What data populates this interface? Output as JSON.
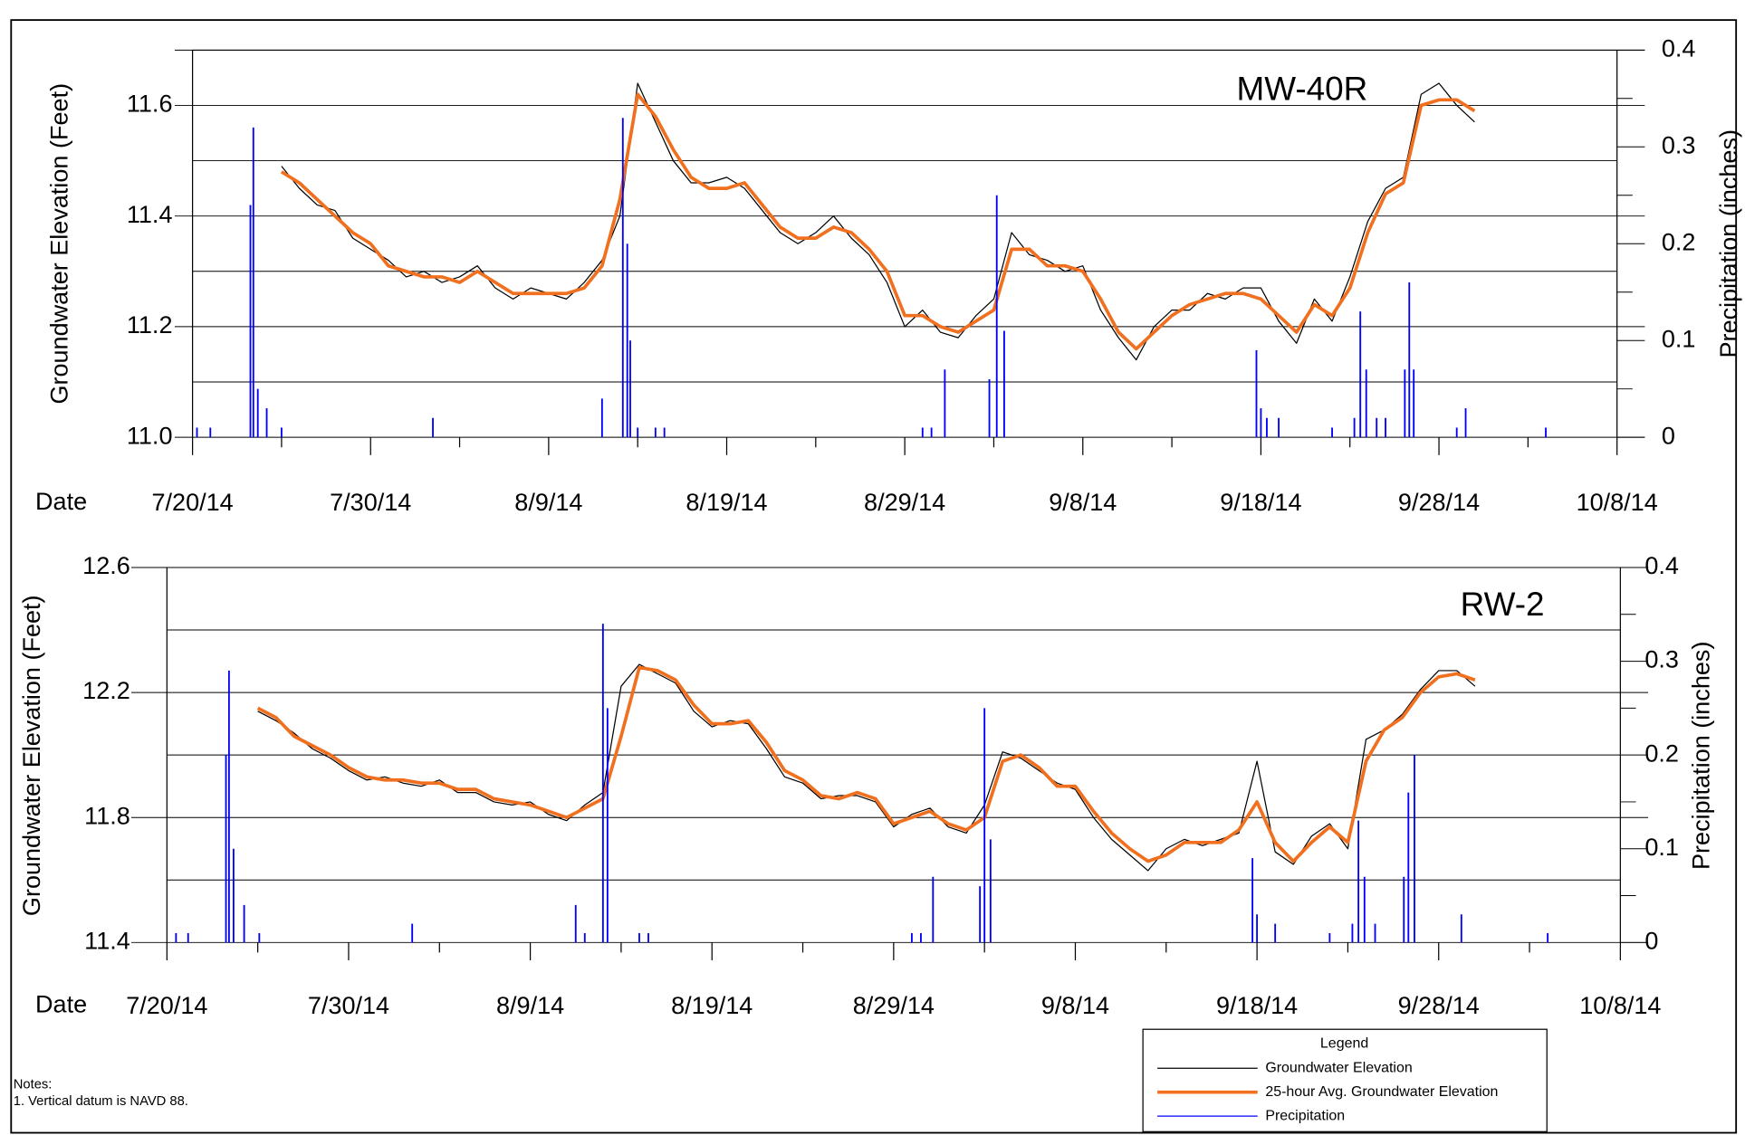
{
  "chart_data": [
    {
      "type": "line",
      "annotation": "MW-40R",
      "xlabel": "Date",
      "ylabel": "Groundwater Elevation (Feet)",
      "y2label": "Precipitation (inches)",
      "xlim": [
        "2014-07-20",
        "2014-10-08"
      ],
      "xticks": [
        {
          "value": "2014-07-20",
          "label": "7/20/14"
        },
        {
          "value": "2014-07-30",
          "label": "7/30/14"
        },
        {
          "value": "2014-08-09",
          "label": "8/9/14"
        },
        {
          "value": "2014-08-19",
          "label": "8/19/14"
        },
        {
          "value": "2014-08-29",
          "label": "8/29/14"
        },
        {
          "value": "2014-09-08",
          "label": "9/8/14"
        },
        {
          "value": "2014-09-18",
          "label": "9/18/14"
        },
        {
          "value": "2014-09-28",
          "label": "9/28/14"
        },
        {
          "value": "2014-10-08",
          "label": "10/8/14"
        }
      ],
      "xminor": [
        "2014-07-25",
        "2014-08-04",
        "2014-08-14",
        "2014-08-24",
        "2014-09-03",
        "2014-09-13",
        "2014-09-23",
        "2014-10-03"
      ],
      "ylim": [
        11.0,
        11.7
      ],
      "yticks": [
        {
          "value": 11.0,
          "label": "11.0"
        },
        11.2,
        11.4,
        11.6
      ],
      "yminor": [
        11.1,
        11.3,
        11.5,
        11.7
      ],
      "y2lim": [
        0,
        0.4
      ],
      "y2ticks": [
        0,
        0.1,
        0.2,
        0.3,
        0.4
      ],
      "y2minor": [
        0.05,
        0.15,
        0.25,
        0.35
      ],
      "x": [
        "2014-07-25",
        "2014-07-26",
        "2014-07-27",
        "2014-07-28",
        "2014-07-29",
        "2014-07-30",
        "2014-07-31",
        "2014-08-01",
        "2014-08-02",
        "2014-08-03",
        "2014-08-04",
        "2014-08-05",
        "2014-08-06",
        "2014-08-07",
        "2014-08-08",
        "2014-08-09",
        "2014-08-10",
        "2014-08-11",
        "2014-08-12",
        "2014-08-13",
        "2014-08-14",
        "2014-08-15",
        "2014-08-16",
        "2014-08-17",
        "2014-08-18",
        "2014-08-19",
        "2014-08-20",
        "2014-08-21",
        "2014-08-22",
        "2014-08-23",
        "2014-08-24",
        "2014-08-25",
        "2014-08-26",
        "2014-08-27",
        "2014-08-28",
        "2014-08-29",
        "2014-08-30",
        "2014-08-31",
        "2014-09-01",
        "2014-09-02",
        "2014-09-03",
        "2014-09-04",
        "2014-09-05",
        "2014-09-06",
        "2014-09-07",
        "2014-09-08",
        "2014-09-09",
        "2014-09-10",
        "2014-09-11",
        "2014-09-12",
        "2014-09-13",
        "2014-09-14",
        "2014-09-15",
        "2014-09-16",
        "2014-09-17",
        "2014-09-18",
        "2014-09-19",
        "2014-09-20",
        "2014-09-21",
        "2014-09-22",
        "2014-09-23",
        "2014-09-24",
        "2014-09-25",
        "2014-09-26",
        "2014-09-27",
        "2014-09-28",
        "2014-09-29",
        "2014-09-30"
      ],
      "series": [
        {
          "name": "Groundwater Elevation",
          "color": "#000000",
          "values": [
            11.49,
            11.45,
            11.42,
            11.41,
            11.36,
            11.34,
            11.32,
            11.29,
            11.3,
            11.28,
            11.29,
            11.31,
            11.27,
            11.25,
            11.27,
            11.26,
            11.25,
            11.28,
            11.32,
            11.4,
            11.64,
            11.57,
            11.5,
            11.46,
            11.46,
            11.47,
            11.45,
            11.41,
            11.37,
            11.35,
            11.37,
            11.4,
            11.36,
            11.33,
            11.28,
            11.2,
            11.23,
            11.19,
            11.18,
            11.22,
            11.25,
            11.37,
            11.33,
            11.32,
            11.3,
            11.31,
            11.23,
            11.18,
            11.14,
            11.2,
            11.23,
            11.23,
            11.26,
            11.25,
            11.27,
            11.27,
            11.21,
            11.17,
            11.25,
            11.21,
            11.29,
            11.39,
            11.45,
            11.47,
            11.62,
            11.64,
            11.6,
            11.57
          ]
        },
        {
          "name": "25-hour Avg. Groundwater Elevation",
          "color": "#f07020",
          "values": [
            11.48,
            11.46,
            11.43,
            11.4,
            11.37,
            11.35,
            11.31,
            11.3,
            11.29,
            11.29,
            11.28,
            11.3,
            11.28,
            11.26,
            11.26,
            11.26,
            11.26,
            11.27,
            11.31,
            11.43,
            11.62,
            11.58,
            11.52,
            11.47,
            11.45,
            11.45,
            11.46,
            11.42,
            11.38,
            11.36,
            11.36,
            11.38,
            11.37,
            11.34,
            11.3,
            11.22,
            11.22,
            11.2,
            11.19,
            11.21,
            11.23,
            11.34,
            11.34,
            11.31,
            11.31,
            11.3,
            11.25,
            11.19,
            11.16,
            11.19,
            11.22,
            11.24,
            11.25,
            11.26,
            11.26,
            11.25,
            11.22,
            11.19,
            11.24,
            11.22,
            11.27,
            11.37,
            11.44,
            11.46,
            11.6,
            11.61,
            11.61,
            11.59
          ]
        },
        {
          "name": "Precipitation",
          "color": "#0000ff",
          "axis": "y2",
          "x": [
            "2014-07-20T06:00",
            "2014-07-21T00:00",
            "2014-07-23T06:00",
            "2014-07-23T10:00",
            "2014-07-23T16:00",
            "2014-07-24T04:00",
            "2014-07-25T00:00",
            "2014-08-02T12:00",
            "2014-08-12T00:00",
            "2014-08-13T04:00",
            "2014-08-13T10:00",
            "2014-08-13T14:00",
            "2014-08-14T00:00",
            "2014-08-15T00:00",
            "2014-08-15T12:00",
            "2014-08-30T00:00",
            "2014-08-30T12:00",
            "2014-08-31T06:00",
            "2014-09-02T18:00",
            "2014-09-03T04:00",
            "2014-09-03T14:00",
            "2014-09-17T18:00",
            "2014-09-18T00:00",
            "2014-09-18T08:00",
            "2014-09-19T00:00",
            "2014-09-22T00:00",
            "2014-09-23T06:00",
            "2014-09-23T14:00",
            "2014-09-23T22:00",
            "2014-09-24T12:00",
            "2014-09-25T00:00",
            "2014-09-26T02:00",
            "2014-09-26T08:00",
            "2014-09-26T14:00",
            "2014-09-29T00:00",
            "2014-09-29T12:00",
            "2014-10-04T00:00"
          ],
          "values": [
            0.01,
            0.01,
            0.24,
            0.32,
            0.05,
            0.03,
            0.01,
            0.02,
            0.04,
            0.33,
            0.2,
            0.1,
            0.01,
            0.01,
            0.01,
            0.01,
            0.01,
            0.07,
            0.06,
            0.25,
            0.11,
            0.09,
            0.03,
            0.02,
            0.02,
            0.01,
            0.02,
            0.13,
            0.07,
            0.02,
            0.02,
            0.07,
            0.16,
            0.07,
            0.01,
            0.03,
            0.01
          ]
        }
      ]
    },
    {
      "type": "line",
      "annotation": "RW-2",
      "xlabel": "Date",
      "ylabel": "Groundwater Elevation (Feet)",
      "y2label": "Precipitation (inches)",
      "xlim": [
        "2014-07-20",
        "2014-10-08"
      ],
      "xticks": [
        {
          "value": "2014-07-20",
          "label": "7/20/14"
        },
        {
          "value": "2014-07-30",
          "label": "7/30/14"
        },
        {
          "value": "2014-08-09",
          "label": "8/9/14"
        },
        {
          "value": "2014-08-19",
          "label": "8/19/14"
        },
        {
          "value": "2014-08-29",
          "label": "8/29/14"
        },
        {
          "value": "2014-09-08",
          "label": "9/8/14"
        },
        {
          "value": "2014-09-18",
          "label": "9/18/14"
        },
        {
          "value": "2014-09-28",
          "label": "9/28/14"
        },
        {
          "value": "2014-10-08",
          "label": "10/8/14"
        }
      ],
      "xminor": [
        "2014-07-25",
        "2014-08-04",
        "2014-08-14",
        "2014-08-24",
        "2014-09-03",
        "2014-09-13",
        "2014-09-23",
        "2014-10-03"
      ],
      "ylim": [
        11.4,
        12.6
      ],
      "yticks": [
        11.4,
        11.8,
        12.2,
        12.6
      ],
      "yminor": [
        11.6,
        12.0,
        12.4
      ],
      "y2lim": [
        0,
        0.4
      ],
      "y2ticks": [
        0,
        0.1,
        0.2,
        0.3,
        0.4
      ],
      "y2minor": [
        0.05,
        0.15,
        0.25,
        0.35
      ],
      "x": [
        "2014-07-25",
        "2014-07-26",
        "2014-07-27",
        "2014-07-28",
        "2014-07-29",
        "2014-07-30",
        "2014-07-31",
        "2014-08-01",
        "2014-08-02",
        "2014-08-03",
        "2014-08-04",
        "2014-08-05",
        "2014-08-06",
        "2014-08-07",
        "2014-08-08",
        "2014-08-09",
        "2014-08-10",
        "2014-08-11",
        "2014-08-12",
        "2014-08-13",
        "2014-08-14",
        "2014-08-15",
        "2014-08-16",
        "2014-08-17",
        "2014-08-18",
        "2014-08-19",
        "2014-08-20",
        "2014-08-21",
        "2014-08-22",
        "2014-08-23",
        "2014-08-24",
        "2014-08-25",
        "2014-08-26",
        "2014-08-27",
        "2014-08-28",
        "2014-08-29",
        "2014-08-30",
        "2014-08-31",
        "2014-09-01",
        "2014-09-02",
        "2014-09-03",
        "2014-09-04",
        "2014-09-05",
        "2014-09-06",
        "2014-09-07",
        "2014-09-08",
        "2014-09-09",
        "2014-09-10",
        "2014-09-11",
        "2014-09-12",
        "2014-09-13",
        "2014-09-14",
        "2014-09-15",
        "2014-09-16",
        "2014-09-17",
        "2014-09-18",
        "2014-09-19",
        "2014-09-20",
        "2014-09-21",
        "2014-09-22",
        "2014-09-23",
        "2014-09-24",
        "2014-09-25",
        "2014-09-26",
        "2014-09-27",
        "2014-09-28",
        "2014-09-29",
        "2014-09-30"
      ],
      "series": [
        {
          "name": "Groundwater Elevation",
          "color": "#000000",
          "values": [
            12.14,
            12.11,
            12.07,
            12.02,
            11.99,
            11.95,
            11.92,
            11.93,
            11.91,
            11.9,
            11.92,
            11.88,
            11.88,
            11.85,
            11.84,
            11.85,
            11.81,
            11.79,
            11.84,
            11.88,
            12.22,
            12.29,
            12.26,
            12.23,
            12.14,
            12.09,
            12.11,
            12.1,
            12.02,
            11.93,
            11.91,
            11.86,
            11.87,
            11.87,
            11.85,
            11.77,
            11.81,
            11.83,
            11.77,
            11.75,
            11.84,
            12.01,
            11.99,
            11.95,
            11.91,
            11.89,
            11.8,
            11.73,
            11.68,
            11.63,
            11.7,
            11.73,
            11.71,
            11.73,
            11.75,
            11.98,
            11.69,
            11.65,
            11.74,
            11.78,
            11.7,
            12.05,
            12.08,
            12.13,
            12.21,
            12.27,
            12.27,
            12.22
          ]
        },
        {
          "name": "25-hour Avg. Groundwater Elevation",
          "color": "#f07020",
          "values": [
            12.15,
            12.12,
            12.06,
            12.03,
            12.0,
            11.96,
            11.93,
            11.92,
            11.92,
            11.91,
            11.91,
            11.89,
            11.89,
            11.86,
            11.85,
            11.84,
            11.82,
            11.8,
            11.83,
            11.86,
            12.06,
            12.28,
            12.27,
            12.24,
            12.16,
            12.1,
            12.1,
            12.11,
            12.04,
            11.95,
            11.92,
            11.87,
            11.86,
            11.88,
            11.86,
            11.78,
            11.8,
            11.82,
            11.78,
            11.76,
            11.8,
            11.98,
            12.0,
            11.96,
            11.9,
            11.9,
            11.82,
            11.75,
            11.7,
            11.66,
            11.68,
            11.72,
            11.72,
            11.72,
            11.76,
            11.85,
            11.72,
            11.66,
            11.72,
            11.77,
            11.72,
            11.98,
            12.08,
            12.12,
            12.2,
            12.25,
            12.26,
            12.24
          ]
        },
        {
          "name": "Precipitation",
          "color": "#0000ff",
          "axis": "y2",
          "x": [
            "2014-07-20T12:00",
            "2014-07-21T04:00",
            "2014-07-23T06:00",
            "2014-07-23T10:00",
            "2014-07-23T16:00",
            "2014-07-24T06:00",
            "2014-07-25T02:00",
            "2014-08-02T12:00",
            "2014-08-11T12:00",
            "2014-08-12T00:00",
            "2014-08-13T00:00",
            "2014-08-13T06:00",
            "2014-08-15T00:00",
            "2014-08-15T12:00",
            "2014-08-30T00:00",
            "2014-08-30T12:00",
            "2014-08-31T04:00",
            "2014-09-02T18:00",
            "2014-09-03T00:00",
            "2014-09-03T08:00",
            "2014-09-17T18:00",
            "2014-09-18T00:00",
            "2014-09-19T00:00",
            "2014-09-22T00:00",
            "2014-09-23T06:00",
            "2014-09-23T14:00",
            "2014-09-23T22:00",
            "2014-09-24T12:00",
            "2014-09-26T02:00",
            "2014-09-26T08:00",
            "2014-09-26T16:00",
            "2014-09-29T06:00",
            "2014-10-04T00:00"
          ],
          "values": [
            0.01,
            0.01,
            0.2,
            0.29,
            0.1,
            0.04,
            0.01,
            0.02,
            0.04,
            0.01,
            0.34,
            0.25,
            0.01,
            0.01,
            0.01,
            0.01,
            0.07,
            0.06,
            0.25,
            0.11,
            0.09,
            0.03,
            0.02,
            0.01,
            0.02,
            0.13,
            0.07,
            0.02,
            0.07,
            0.16,
            0.2,
            0.03,
            0.01
          ]
        }
      ]
    }
  ],
  "legend": {
    "title": "Legend"
  },
  "notes": {
    "title": "Notes:",
    "items": [
      "1.  Vertical datum is NAVD 88."
    ]
  }
}
